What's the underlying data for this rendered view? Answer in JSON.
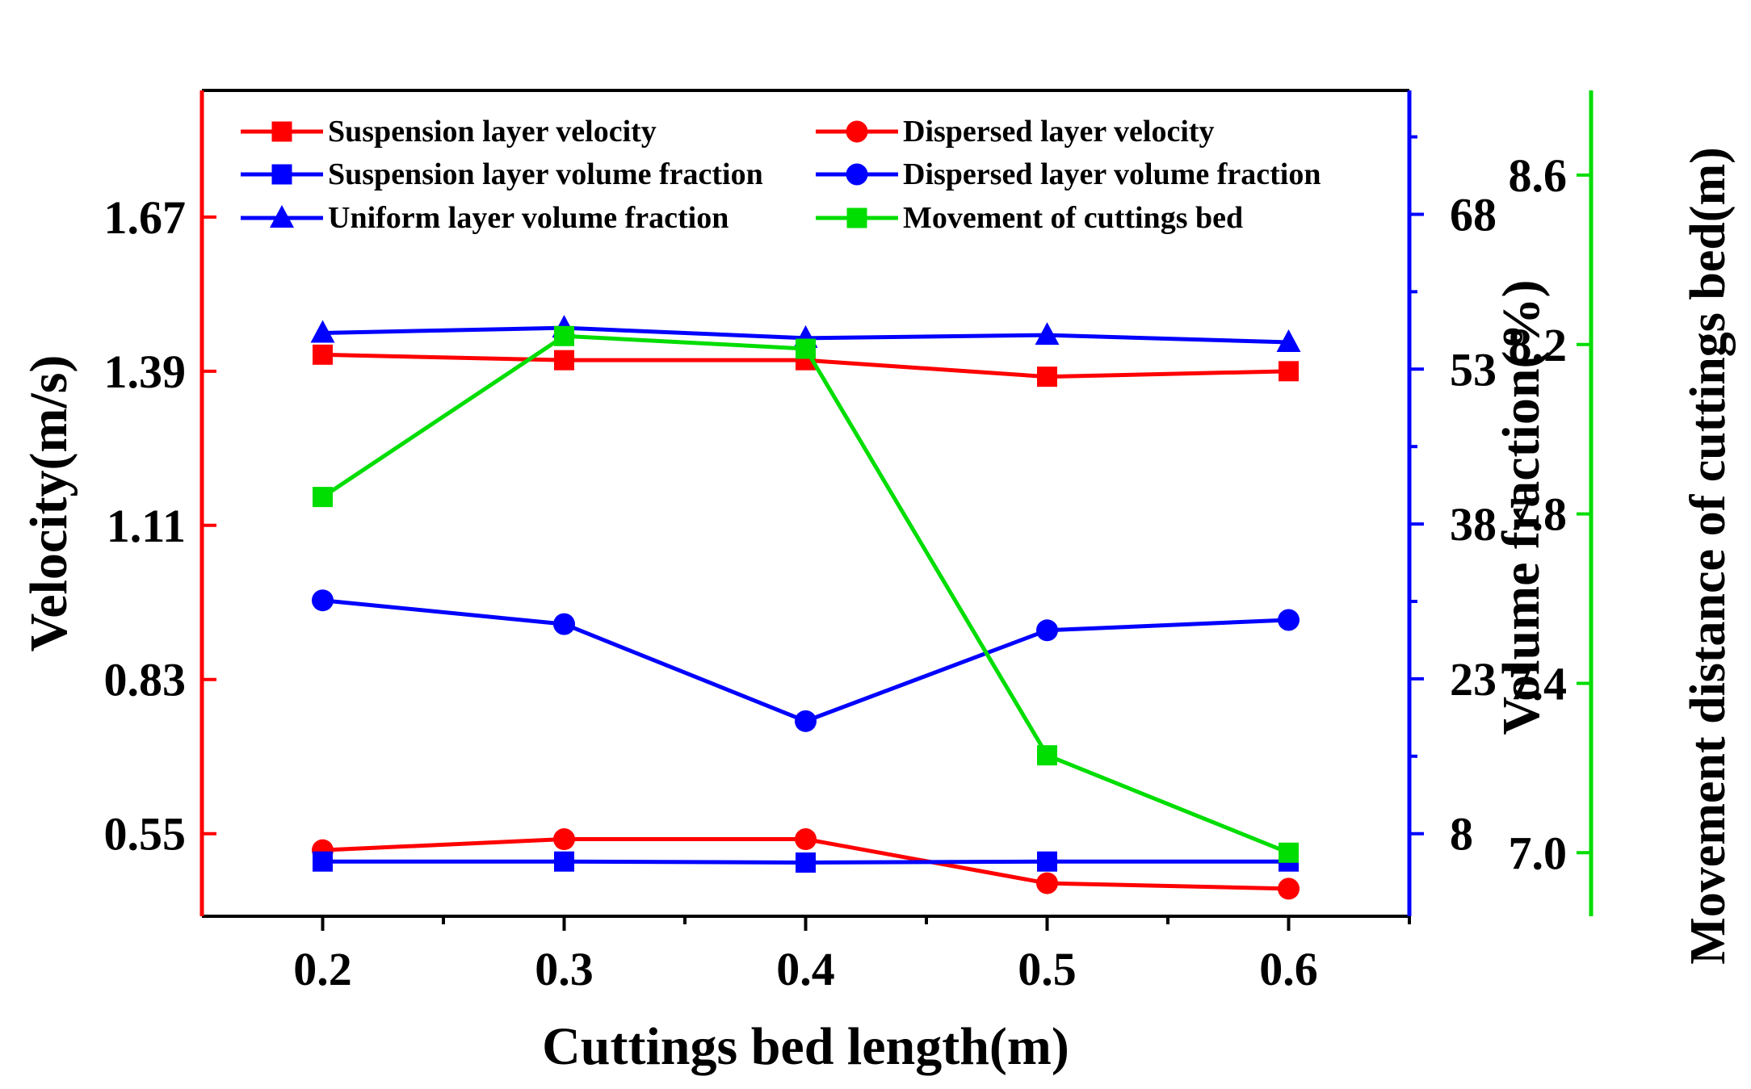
{
  "chart_data": {
    "type": "line",
    "title": "",
    "xlabel": "Cuttings bed length(m)",
    "x": [
      0.2,
      0.3,
      0.4,
      0.5,
      0.6
    ],
    "x_tick_labels": [
      "0.2",
      "0.3",
      "0.4",
      "0.5",
      "0.6"
    ],
    "xlim": [
      0.15,
      0.65
    ],
    "axes": {
      "left": {
        "label": "Velocity(m/s)",
        "range": [
          0.4,
          1.9
        ],
        "ticks": [
          0.55,
          0.83,
          1.11,
          1.39,
          1.67
        ],
        "tick_labels": [
          "0.55",
          "0.83",
          "1.11",
          "1.39",
          "1.67"
        ],
        "color": "#ff0000"
      },
      "right": {
        "label": "Volume fraction(%)",
        "range": [
          0,
          80
        ],
        "ticks": [
          8,
          23,
          38,
          53,
          68
        ],
        "tick_labels": [
          "8",
          "23",
          "38",
          "53",
          "68"
        ],
        "color": "#0000ff"
      },
      "right2": {
        "label": "Movement distance of cuttings bed(m)",
        "range": [
          6.85,
          8.8
        ],
        "ticks": [
          7.0,
          7.4,
          7.8,
          8.2,
          8.6
        ],
        "tick_labels": [
          "7.0",
          "7.4",
          "7.8",
          "8.2",
          "8.6"
        ],
        "color": "#00dd00"
      }
    },
    "series": [
      {
        "name": "Suspension layer velocity",
        "axis": "left",
        "marker": "square",
        "color": "#ff0000",
        "values": [
          1.42,
          1.41,
          1.41,
          1.38,
          1.39
        ]
      },
      {
        "name": "Dispersed layer velocity",
        "axis": "left",
        "marker": "circle",
        "color": "#ff0000",
        "values": [
          0.52,
          0.54,
          0.54,
          0.46,
          0.45
        ]
      },
      {
        "name": "Suspension layer volume fraction",
        "axis": "right",
        "marker": "square",
        "color": "#0000ff",
        "values": [
          5.3,
          5.3,
          5.2,
          5.3,
          5.3
        ]
      },
      {
        "name": "Dispersed layer volume fraction",
        "axis": "right",
        "marker": "circle",
        "color": "#0000ff",
        "values": [
          30.6,
          28.3,
          18.9,
          27.7,
          28.7
        ]
      },
      {
        "name": "Uniform layer volume fraction",
        "axis": "right",
        "marker": "triangle",
        "color": "#0000ff",
        "values": [
          56.5,
          57.0,
          56.0,
          56.3,
          55.6
        ]
      },
      {
        "name": "Movement of cuttings bed",
        "axis": "right2",
        "marker": "square",
        "color": "#00dd00",
        "values": [
          7.84,
          8.22,
          8.19,
          7.23,
          7.0
        ]
      }
    ],
    "legend_position": "top",
    "grid": false
  }
}
